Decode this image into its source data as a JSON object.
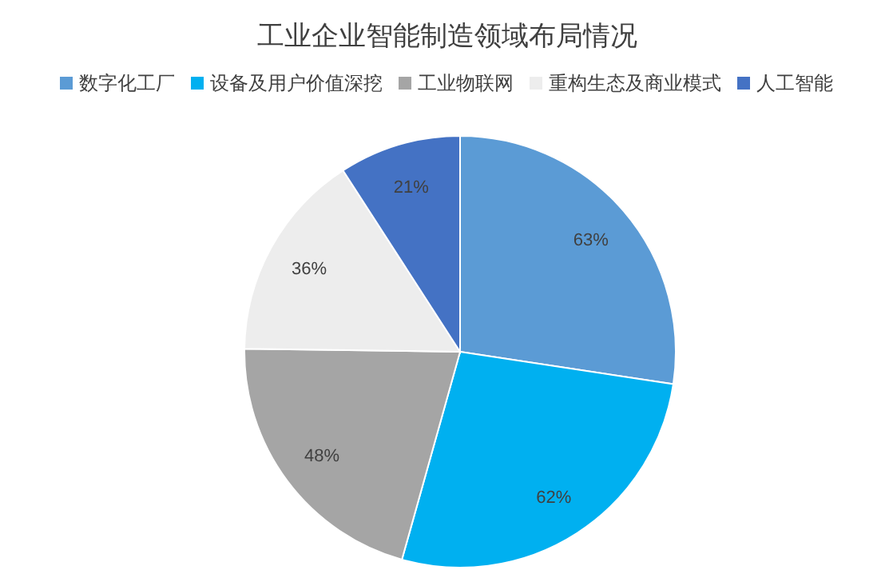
{
  "chart_data": {
    "type": "pie",
    "title": "工业企业智能制造领域布局情况",
    "categories": [
      "数字化工厂",
      "设备及用户价值深挖",
      "工业物联网",
      "重构生态及商业模式",
      "人工智能"
    ],
    "values": [
      63,
      62,
      48,
      36,
      21
    ],
    "colors": [
      "#5b9bd5",
      "#00b0f0",
      "#a5a5a5",
      "#ededed",
      "#4472c4"
    ],
    "value_labels": [
      "63%",
      "62%",
      "48%",
      "36%",
      "21%"
    ],
    "legend": "top"
  }
}
